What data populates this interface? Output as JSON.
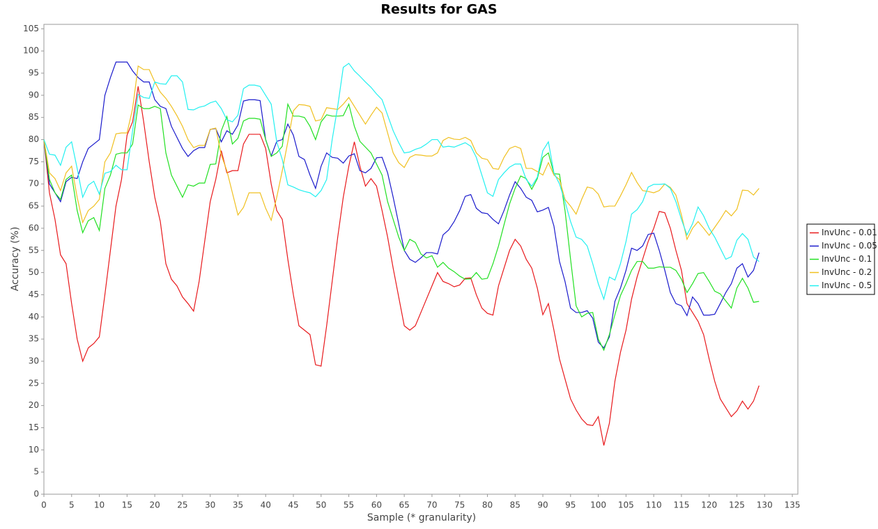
{
  "chart_data": {
    "type": "line",
    "title": "Results for GAS",
    "x_label": "Sample (* granularity)",
    "y_label": "Accuracy (%)",
    "x": [
      0,
      1,
      2,
      3,
      4,
      5,
      6,
      7,
      8,
      9,
      10,
      11,
      12,
      13,
      14,
      15,
      16,
      17,
      18,
      19,
      20,
      21,
      22,
      23,
      24,
      25,
      26,
      27,
      28,
      29,
      30,
      31,
      32,
      33,
      34,
      35,
      36,
      37,
      38,
      39,
      40,
      41,
      42,
      43,
      44,
      45,
      46,
      47,
      48,
      49,
      50,
      51,
      52,
      53,
      54,
      55,
      56,
      57,
      58,
      59,
      60,
      61,
      62,
      63,
      64,
      65,
      66,
      67,
      68,
      69,
      70,
      71,
      72,
      73,
      74,
      75,
      76,
      77,
      78,
      79,
      80,
      81,
      82,
      83,
      84,
      85,
      86,
      87,
      88,
      89,
      90,
      91,
      92,
      93,
      94,
      95,
      96,
      97,
      98,
      99,
      100,
      101,
      102,
      103,
      104,
      105,
      106,
      107,
      108,
      109,
      110,
      111,
      112,
      113,
      114,
      115,
      116,
      117,
      118,
      119,
      120,
      121,
      122,
      123,
      124,
      125,
      126,
      127,
      128,
      129
    ],
    "series": [
      {
        "name": "InvUnc - 0.01",
        "color": "#e8191c",
        "values": [
          80,
          68,
          62,
          54,
          52,
          43,
          35,
          30,
          33,
          34,
          35.5,
          45,
          55,
          65,
          71,
          81,
          84,
          92,
          84,
          75,
          67,
          61.5,
          52,
          48.5,
          47,
          44.5,
          43,
          41.3,
          48,
          57,
          66,
          71,
          77.5,
          72.5,
          73,
          73,
          79,
          81.2,
          81.2,
          81.2,
          78,
          70,
          64,
          62,
          53,
          45,
          38,
          37,
          36,
          29.2,
          28.9,
          38,
          48,
          58,
          67,
          74,
          79.5,
          74,
          69.5,
          71.2,
          69.5,
          64,
          58,
          51,
          44.5,
          38,
          37,
          38,
          41,
          44,
          47,
          50,
          48,
          47.5,
          46.8,
          47.2,
          48.7,
          48.8,
          45,
          42,
          40.8,
          40.4,
          47,
          51,
          55,
          57.5,
          56,
          53,
          51,
          46.5,
          40.5,
          43,
          37,
          30.5,
          26,
          21.5,
          19,
          17,
          15.7,
          15.5,
          17.5,
          11,
          16,
          25.5,
          32,
          37,
          44,
          49,
          53,
          57,
          60,
          63.8,
          63.5,
          60,
          55,
          50.5,
          43,
          41,
          39,
          36,
          30.5,
          25.5,
          21.5,
          19.5,
          17.5,
          18.8,
          21,
          19.2,
          21,
          24.5
        ]
      },
      {
        "name": "InvUnc - 0.05",
        "color": "#1a1acc",
        "values": [
          80,
          70,
          68,
          66,
          70.5,
          71.5,
          71.2,
          75,
          78,
          79,
          80,
          90,
          94,
          97.5,
          97.5,
          97.5,
          95.5,
          94,
          93,
          93,
          89,
          87.5,
          87,
          83,
          80.5,
          78,
          76.2,
          77.5,
          78.2,
          78.2,
          82.3,
          82.5,
          79.5,
          82,
          81.2,
          83.3,
          88.7,
          89,
          89,
          88.8,
          80,
          76.3,
          79.6,
          80,
          83.5,
          81,
          76.2,
          75.5,
          72,
          69,
          74,
          77,
          76,
          75.8,
          74.7,
          76.3,
          76.8,
          73,
          72.5,
          73.5,
          75.9,
          76,
          72.5,
          67,
          61,
          55,
          53,
          52.3,
          53.3,
          54.5,
          54.5,
          54.2,
          58.5,
          59.6,
          61.5,
          64,
          67.2,
          67.6,
          64.5,
          63.5,
          63.3,
          62,
          61,
          64,
          67.5,
          70.5,
          69,
          67,
          66.3,
          63.7,
          64.1,
          64.7,
          60.5,
          52.5,
          48,
          42,
          41,
          41,
          41.4,
          39.7,
          34.3,
          33,
          35.5,
          43.5,
          46.5,
          50.5,
          55.5,
          55,
          56,
          58.6,
          58.9,
          55,
          50.5,
          45.5,
          43,
          42.5,
          40.3,
          44.5,
          43,
          40.4,
          40.4,
          40.6,
          43,
          45.5,
          47.5,
          51,
          52,
          49,
          50.5,
          54.5
        ]
      },
      {
        "name": "InvUnc - 0.1",
        "color": "#22e022",
        "values": [
          80,
          71,
          68,
          66.5,
          71,
          72,
          64,
          59,
          61.7,
          62.4,
          59.5,
          69,
          72,
          76.7,
          77,
          77,
          79,
          87.8,
          87,
          87,
          87.5,
          87,
          77,
          72,
          69.5,
          67,
          69.8,
          69.5,
          70.2,
          70.2,
          74.4,
          74.5,
          82,
          85.2,
          79,
          80.3,
          84.2,
          84.8,
          84.8,
          84.6,
          80,
          76.2,
          77,
          78.5,
          88,
          85.3,
          85.3,
          85,
          83,
          80,
          84,
          85.6,
          85.3,
          85.3,
          85.4,
          88,
          83,
          79.6,
          78.3,
          77,
          74.5,
          72,
          66,
          62,
          58,
          55,
          57.5,
          56.8,
          54.2,
          53.3,
          53.8,
          51.2,
          52.3,
          51,
          50.2,
          49.2,
          48.5,
          48.6,
          50,
          48.5,
          48.7,
          52,
          56,
          60.8,
          65.5,
          69,
          71.8,
          71.2,
          68.8,
          71.2,
          76,
          77,
          72.3,
          72.2,
          64,
          53,
          42.5,
          40,
          40.8,
          41,
          35,
          32.5,
          36,
          40.5,
          44.8,
          47.5,
          50.5,
          52.5,
          52.5,
          51,
          51,
          51.3,
          51.2,
          51.2,
          50.5,
          48.5,
          45.5,
          47.5,
          49.8,
          50,
          48,
          45.8,
          45.2,
          43.6,
          42,
          46.5,
          48.7,
          46.5,
          43.3,
          43.5
        ]
      },
      {
        "name": "InvUnc - 0.2",
        "color": "#f0c020",
        "values": [
          80,
          72.5,
          71.2,
          68.5,
          72.5,
          74,
          67,
          61.3,
          64,
          65,
          66.5,
          75,
          77,
          81.3,
          81.5,
          81.5,
          87,
          96.6,
          95.8,
          95.8,
          93,
          90.7,
          89.3,
          87.5,
          85.4,
          83,
          80,
          78.2,
          78.7,
          78.7,
          82.3,
          82.6,
          76.5,
          73,
          68,
          63,
          64.7,
          68,
          68,
          68,
          64.5,
          61.8,
          67,
          73,
          79.5,
          86.5,
          87.9,
          87.8,
          87.5,
          84.2,
          84.5,
          87.2,
          87,
          86.8,
          88,
          89.5,
          87.5,
          85.5,
          83.5,
          85.5,
          87.3,
          86,
          81.5,
          77,
          74.8,
          73.7,
          76,
          76.6,
          76.5,
          76.3,
          76.3,
          77,
          79.8,
          80.5,
          80.1,
          80,
          80.5,
          79.8,
          77,
          75.8,
          75.5,
          73.5,
          73.3,
          76,
          78,
          78.5,
          78,
          73.5,
          73.5,
          72.8,
          72,
          74.8,
          72,
          71,
          66.5,
          65,
          63.2,
          66.5,
          69.3,
          69,
          67.7,
          64.8,
          65,
          65,
          67.3,
          69.8,
          72.6,
          70.3,
          68.5,
          68.3,
          68,
          68.5,
          70,
          69.2,
          67.5,
          63,
          57.5,
          60,
          61.5,
          60,
          58.4,
          60.2,
          62,
          64,
          62.8,
          64.3,
          68.6,
          68.5,
          67.5,
          69
        ]
      },
      {
        "name": "InvUnc - 0.5",
        "color": "#22f0f0",
        "values": [
          80,
          76.7,
          76.5,
          74.2,
          78.3,
          79.5,
          73.5,
          67,
          69.7,
          70.6,
          67.7,
          72.4,
          72.8,
          74.2,
          73.2,
          73.2,
          82,
          90.2,
          89.5,
          89.3,
          93,
          92.6,
          92.5,
          94.4,
          94.4,
          93,
          86.8,
          86.7,
          87.3,
          87.6,
          88.3,
          88.7,
          87,
          84.5,
          84,
          85.5,
          91.5,
          92.3,
          92.3,
          92,
          90,
          88,
          79.5,
          75.5,
          69.8,
          69.3,
          68.7,
          68.3,
          68,
          67.1,
          68.5,
          71,
          80,
          87.5,
          96.3,
          97.2,
          95.5,
          94.3,
          93,
          91.8,
          90.3,
          89,
          85.5,
          82,
          79.3,
          77,
          77.2,
          77.8,
          78.2,
          79,
          80,
          80,
          78.3,
          78.5,
          78.3,
          78.8,
          79.3,
          78.5,
          76,
          72,
          68,
          67.2,
          71,
          72.5,
          73.8,
          74.5,
          74.5,
          71,
          69.5,
          71.5,
          77.5,
          79.5,
          72.5,
          70,
          66,
          61.5,
          58,
          57.5,
          56,
          52,
          47.5,
          44,
          49,
          48.3,
          52,
          57,
          63.2,
          64.2,
          66,
          69.3,
          69.9,
          69.9,
          70,
          69,
          66,
          62,
          58.5,
          61,
          64.8,
          62.8,
          60,
          58,
          55.5,
          53,
          53.6,
          57.3,
          58.8,
          57.5,
          53.5,
          52.5
        ]
      }
    ],
    "xlim": [
      0,
      136
    ],
    "ylim": [
      0,
      106
    ],
    "xticks": [
      0,
      5,
      10,
      15,
      20,
      25,
      30,
      35,
      40,
      45,
      50,
      55,
      60,
      65,
      70,
      75,
      80,
      85,
      90,
      95,
      100,
      105,
      110,
      115,
      120,
      125,
      130,
      135
    ],
    "yticks": [
      0,
      5,
      10,
      15,
      20,
      25,
      30,
      35,
      40,
      45,
      50,
      55,
      60,
      65,
      70,
      75,
      80,
      85,
      90,
      95,
      100,
      105
    ],
    "grid": false,
    "legend": "right"
  }
}
